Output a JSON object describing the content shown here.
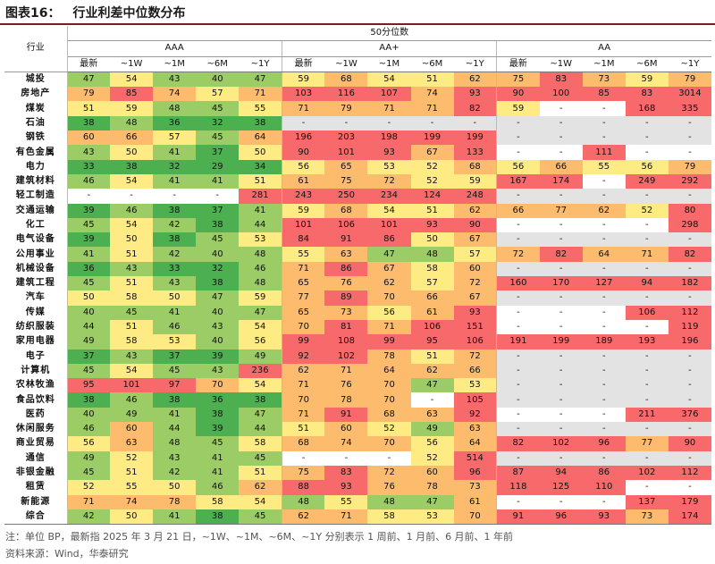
{
  "title": {
    "label": "图表16：",
    "text": "行业利差中位数分布"
  },
  "header": {
    "industry": "行业",
    "main": "50分位数",
    "groups": [
      "AAA",
      "AA+",
      "AA"
    ],
    "subcols": [
      "最新",
      "~1W",
      "~1M",
      "~6M",
      "~1Y"
    ]
  },
  "colors": {
    "green": "#4caf50",
    "lightgreen": "#9ccc65",
    "yellow": "#ffeb84",
    "orange": "#fdbb6e",
    "red": "#f8696b",
    "gray": "#e3e3e3",
    "white": "#ffffff"
  },
  "rows": [
    {
      "name": "城投",
      "aaa": [
        "47",
        "54",
        "43",
        "40",
        "47"
      ],
      "aap": [
        "59",
        "68",
        "54",
        "51",
        "62"
      ],
      "aa": [
        "75",
        "83",
        "73",
        "59",
        "79"
      ]
    },
    {
      "name": "房地产",
      "aaa": [
        "79",
        "85",
        "74",
        "57",
        "71"
      ],
      "aap": [
        "103",
        "116",
        "107",
        "74",
        "93"
      ],
      "aa": [
        "90",
        "100",
        "85",
        "83",
        "3014"
      ]
    },
    {
      "name": "煤炭",
      "aaa": [
        "51",
        "59",
        "48",
        "45",
        "55"
      ],
      "aap": [
        "71",
        "79",
        "71",
        "71",
        "82"
      ],
      "aa": [
        "59",
        "-",
        "-",
        "168",
        "335"
      ]
    },
    {
      "name": "石油",
      "aaa": [
        "38",
        "48",
        "36",
        "32",
        "38"
      ],
      "aap": [
        "-",
        "-",
        "-",
        "-",
        "-"
      ],
      "aa": [
        "-",
        "-",
        "-",
        "-",
        "-"
      ]
    },
    {
      "name": "钢铁",
      "aaa": [
        "60",
        "66",
        "57",
        "45",
        "64"
      ],
      "aap": [
        "196",
        "203",
        "198",
        "199",
        "199"
      ],
      "aa": [
        "-",
        "-",
        "-",
        "-",
        "-"
      ]
    },
    {
      "name": "有色金属",
      "aaa": [
        "43",
        "50",
        "41",
        "37",
        "50"
      ],
      "aap": [
        "90",
        "101",
        "93",
        "67",
        "133"
      ],
      "aa": [
        "-",
        "-",
        "111",
        "-",
        "-"
      ]
    },
    {
      "name": "电力",
      "aaa": [
        "33",
        "38",
        "32",
        "29",
        "34"
      ],
      "aap": [
        "56",
        "65",
        "53",
        "52",
        "68"
      ],
      "aa": [
        "56",
        "66",
        "55",
        "56",
        "79"
      ]
    },
    {
      "name": "建筑材料",
      "aaa": [
        "46",
        "54",
        "41",
        "41",
        "51"
      ],
      "aap": [
        "61",
        "75",
        "72",
        "52",
        "59"
      ],
      "aa": [
        "167",
        "174",
        "-",
        "249",
        "292"
      ]
    },
    {
      "name": "轻工制造",
      "aaa": [
        "-",
        "-",
        "-",
        "-",
        "281"
      ],
      "aap": [
        "243",
        "250",
        "234",
        "124",
        "248"
      ],
      "aa": [
        "-",
        "-",
        "-",
        "-",
        "-"
      ]
    },
    {
      "name": "交通运输",
      "aaa": [
        "39",
        "46",
        "38",
        "37",
        "41"
      ],
      "aap": [
        "59",
        "68",
        "54",
        "51",
        "62"
      ],
      "aa": [
        "66",
        "77",
        "62",
        "52",
        "80"
      ]
    },
    {
      "name": "化工",
      "aaa": [
        "45",
        "54",
        "42",
        "38",
        "44"
      ],
      "aap": [
        "101",
        "106",
        "101",
        "93",
        "90"
      ],
      "aa": [
        "-",
        "-",
        "-",
        "-",
        "298"
      ]
    },
    {
      "name": "电气设备",
      "aaa": [
        "39",
        "50",
        "38",
        "45",
        "53"
      ],
      "aap": [
        "84",
        "91",
        "86",
        "50",
        "67"
      ],
      "aa": [
        "-",
        "-",
        "-",
        "-",
        "-"
      ]
    },
    {
      "name": "公用事业",
      "aaa": [
        "41",
        "51",
        "42",
        "40",
        "48"
      ],
      "aap": [
        "55",
        "63",
        "47",
        "48",
        "57"
      ],
      "aa": [
        "72",
        "82",
        "64",
        "71",
        "82"
      ]
    },
    {
      "name": "机械设备",
      "aaa": [
        "36",
        "43",
        "33",
        "32",
        "46"
      ],
      "aap": [
        "71",
        "86",
        "67",
        "58",
        "60"
      ],
      "aa": [
        "-",
        "-",
        "-",
        "-",
        "-"
      ]
    },
    {
      "name": "建筑工程",
      "aaa": [
        "45",
        "51",
        "43",
        "38",
        "48"
      ],
      "aap": [
        "65",
        "76",
        "62",
        "57",
        "72"
      ],
      "aa": [
        "160",
        "170",
        "127",
        "94",
        "182"
      ]
    },
    {
      "name": "汽车",
      "aaa": [
        "50",
        "58",
        "50",
        "47",
        "59"
      ],
      "aap": [
        "77",
        "89",
        "70",
        "66",
        "67"
      ],
      "aa": [
        "-",
        "-",
        "-",
        "-",
        "-"
      ]
    },
    {
      "name": "传媒",
      "aaa": [
        "40",
        "45",
        "41",
        "40",
        "47"
      ],
      "aap": [
        "65",
        "73",
        "56",
        "61",
        "93"
      ],
      "aa": [
        "-",
        "-",
        "-",
        "106",
        "112"
      ]
    },
    {
      "name": "纺织服装",
      "aaa": [
        "44",
        "51",
        "46",
        "43",
        "54"
      ],
      "aap": [
        "70",
        "81",
        "71",
        "106",
        "151"
      ],
      "aa": [
        "-",
        "-",
        "-",
        "-",
        "119"
      ]
    },
    {
      "name": "家用电器",
      "aaa": [
        "49",
        "58",
        "53",
        "40",
        "56"
      ],
      "aap": [
        "99",
        "108",
        "99",
        "95",
        "106"
      ],
      "aa": [
        "191",
        "199",
        "189",
        "193",
        "196"
      ]
    },
    {
      "name": "电子",
      "aaa": [
        "37",
        "43",
        "37",
        "39",
        "49"
      ],
      "aap": [
        "92",
        "102",
        "78",
        "51",
        "72"
      ],
      "aa": [
        "-",
        "-",
        "-",
        "-",
        "-"
      ]
    },
    {
      "name": "计算机",
      "aaa": [
        "45",
        "54",
        "45",
        "43",
        "236"
      ],
      "aap": [
        "62",
        "71",
        "64",
        "62",
        "66"
      ],
      "aa": [
        "-",
        "-",
        "-",
        "-",
        "-"
      ]
    },
    {
      "name": "农林牧渔",
      "aaa": [
        "95",
        "101",
        "97",
        "70",
        "54"
      ],
      "aap": [
        "71",
        "76",
        "70",
        "47",
        "53"
      ],
      "aa": [
        "-",
        "-",
        "-",
        "-",
        "-"
      ]
    },
    {
      "name": "食品饮料",
      "aaa": [
        "38",
        "46",
        "38",
        "36",
        "38"
      ],
      "aap": [
        "70",
        "78",
        "70",
        "-",
        "105"
      ],
      "aa": [
        "-",
        "-",
        "-",
        "-",
        "-"
      ]
    },
    {
      "name": "医药",
      "aaa": [
        "40",
        "49",
        "41",
        "38",
        "47"
      ],
      "aap": [
        "71",
        "91",
        "68",
        "63",
        "92"
      ],
      "aa": [
        "-",
        "-",
        "-",
        "211",
        "376"
      ]
    },
    {
      "name": "休闲服务",
      "aaa": [
        "46",
        "60",
        "44",
        "39",
        "44"
      ],
      "aap": [
        "51",
        "60",
        "52",
        "49",
        "63"
      ],
      "aa": [
        "-",
        "-",
        "-",
        "-",
        "-"
      ]
    },
    {
      "name": "商业贸易",
      "aaa": [
        "56",
        "63",
        "48",
        "45",
        "58"
      ],
      "aap": [
        "68",
        "74",
        "70",
        "56",
        "64"
      ],
      "aa": [
        "82",
        "102",
        "96",
        "77",
        "90"
      ]
    },
    {
      "name": "通信",
      "aaa": [
        "49",
        "52",
        "43",
        "41",
        "45"
      ],
      "aap": [
        "-",
        "-",
        "-",
        "52",
        "514"
      ],
      "aa": [
        "-",
        "-",
        "-",
        "-",
        "-"
      ]
    },
    {
      "name": "非银金融",
      "aaa": [
        "45",
        "51",
        "42",
        "41",
        "51"
      ],
      "aap": [
        "75",
        "83",
        "72",
        "60",
        "96"
      ],
      "aa": [
        "87",
        "94",
        "86",
        "102",
        "112"
      ]
    },
    {
      "name": "租赁",
      "aaa": [
        "52",
        "55",
        "50",
        "46",
        "62"
      ],
      "aap": [
        "88",
        "93",
        "76",
        "78",
        "73"
      ],
      "aa": [
        "118",
        "125",
        "110",
        "-",
        "-"
      ]
    },
    {
      "name": "新能源",
      "aaa": [
        "71",
        "74",
        "78",
        "58",
        "54"
      ],
      "aap": [
        "48",
        "55",
        "48",
        "47",
        "61"
      ],
      "aa": [
        "-",
        "-",
        "-",
        "137",
        "179"
      ]
    },
    {
      "name": "综合",
      "aaa": [
        "42",
        "50",
        "41",
        "38",
        "45"
      ],
      "aap": [
        "62",
        "71",
        "58",
        "53",
        "70"
      ],
      "aa": [
        "91",
        "96",
        "93",
        "73",
        "174"
      ]
    }
  ],
  "footnote": "注：单位 BP，最新指 2025 年 3 月 21 日，~1W、~1M、~6M、~1Y 分别表示 1 周前、1 月前、6 月前、1 年前",
  "source": "资料来源：Wind，华泰研究"
}
